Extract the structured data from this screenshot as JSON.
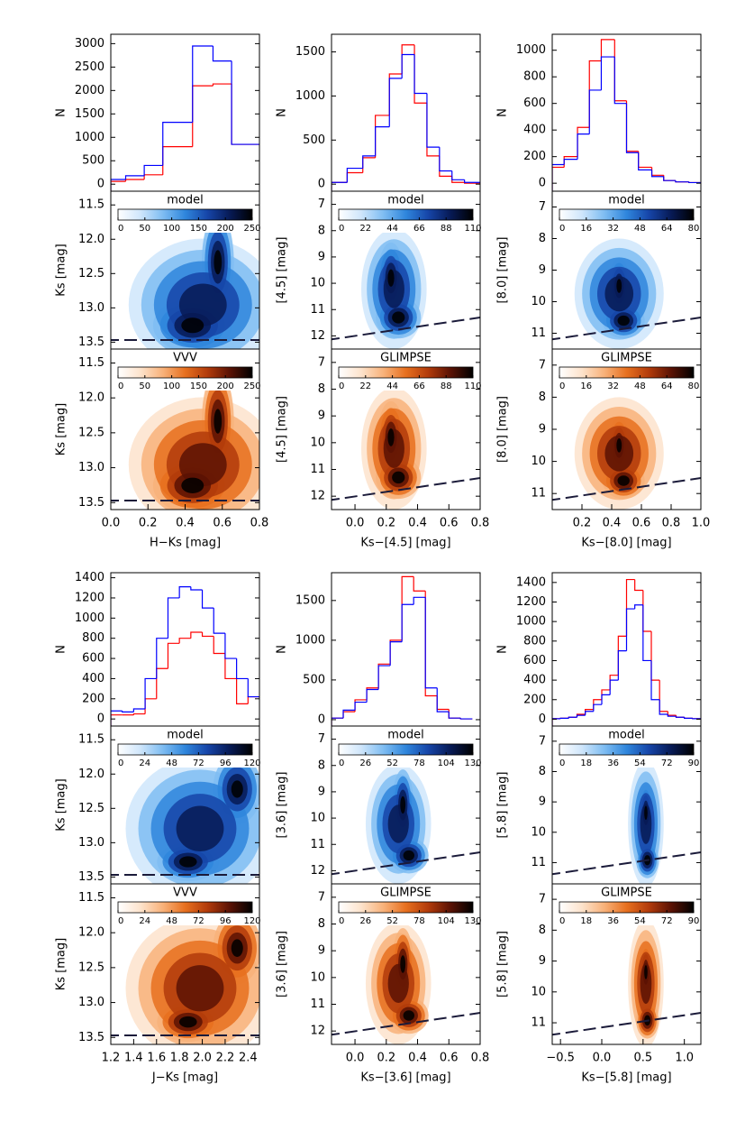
{
  "chart_data": [
    {
      "type": "histogram",
      "ylabel": "N",
      "xlim": [
        0,
        0.8
      ],
      "ylim": [
        -150,
        3200
      ],
      "yticks": [
        0,
        500,
        1000,
        1500,
        2000,
        2500,
        3000
      ],
      "bins": [
        0,
        0.08,
        0.18,
        0.28,
        0.44,
        0.55,
        0.65,
        0.8
      ],
      "series": [
        {
          "color": "#ff0000",
          "values": [
            60,
            100,
            200,
            800,
            2100,
            2140,
            850
          ]
        },
        {
          "color": "#0000ff",
          "values": [
            100,
            180,
            400,
            1320,
            2950,
            2630,
            850
          ]
        }
      ]
    },
    {
      "type": "density",
      "colormap": "blues",
      "ylabel": "Ks [mag]",
      "colorbar_label": "model",
      "clim": [
        0,
        250
      ],
      "cticks": [
        0,
        50,
        100,
        150,
        200,
        250
      ],
      "xlim": [
        0,
        0.8
      ],
      "ylim": [
        13.6,
        11.3
      ],
      "yticks": [
        {
          "value": 11.5,
          "label": "11.5"
        },
        {
          "value": 12,
          "label": "12.0"
        },
        {
          "value": 12.5,
          "label": "12.5"
        },
        {
          "value": 13,
          "label": "13.0"
        },
        {
          "value": 13.5,
          "label": "13.5"
        }
      ]
    },
    {
      "type": "density",
      "colormap": "oranges",
      "ylabel": "Ks [mag]",
      "xlabel": "H−Ks [mag]",
      "colorbar_label": "VVV",
      "clim": [
        0,
        250
      ],
      "cticks": [
        0,
        50,
        100,
        150,
        200,
        250
      ],
      "xlim": [
        0,
        0.8
      ],
      "xticks": [
        {
          "value": 0,
          "label": "0.0"
        },
        {
          "value": 0.2,
          "label": "0.2"
        },
        {
          "value": 0.4,
          "label": "0.4"
        },
        {
          "value": 0.6,
          "label": "0.6"
        },
        {
          "value": 0.8,
          "label": "0.8"
        }
      ],
      "ylim": [
        13.6,
        11.3
      ],
      "yticks": [
        {
          "value": 11.5,
          "label": "11.5"
        },
        {
          "value": 12,
          "label": "12.0"
        },
        {
          "value": 12.5,
          "label": "12.5"
        },
        {
          "value": 13,
          "label": "13.0"
        },
        {
          "value": 13.5,
          "label": "13.5"
        }
      ]
    },
    {
      "type": "histogram",
      "ylabel": "N",
      "xlim": [
        -0.15,
        0.8
      ],
      "ylim": [
        -80,
        1700
      ],
      "yticks": [
        0,
        500,
        1000,
        1500
      ],
      "bins": [
        -0.15,
        -0.05,
        0.05,
        0.13,
        0.22,
        0.3,
        0.38,
        0.46,
        0.54,
        0.62,
        0.7,
        0.8
      ],
      "series": [
        {
          "color": "#ff0000",
          "values": [
            20,
            130,
            300,
            780,
            1250,
            1580,
            920,
            320,
            90,
            20,
            10
          ]
        },
        {
          "color": "#0000ff",
          "values": [
            20,
            180,
            320,
            650,
            1200,
            1470,
            1030,
            420,
            150,
            50,
            20
          ]
        }
      ]
    },
    {
      "type": "density",
      "colormap": "blues",
      "ylabel": "[4.5] [mag]",
      "colorbar_label": "model",
      "clim": [
        0,
        110
      ],
      "cticks": [
        0,
        22,
        44,
        66,
        88,
        110
      ],
      "xlim": [
        -0.15,
        0.8
      ],
      "ylim": [
        12.5,
        6.5
      ],
      "yticks": [
        7,
        8,
        9,
        10,
        11,
        12
      ]
    },
    {
      "type": "density",
      "colormap": "oranges",
      "ylabel": "[4.5] [mag]",
      "xlabel": "Ks−[4.5] [mag]",
      "colorbar_label": "GLIMPSE",
      "clim": [
        0,
        110
      ],
      "cticks": [
        0,
        22,
        44,
        66,
        88,
        110
      ],
      "xlim": [
        -0.15,
        0.8
      ],
      "xticks": [
        {
          "value": 0,
          "label": "0.0"
        },
        {
          "value": 0.2,
          "label": "0.2"
        },
        {
          "value": 0.4,
          "label": "0.4"
        },
        {
          "value": 0.6,
          "label": "0.6"
        },
        {
          "value": 0.8,
          "label": "0.8"
        }
      ],
      "ylim": [
        12.5,
        6.5
      ],
      "yticks": [
        7,
        8,
        9,
        10,
        11,
        12
      ]
    },
    {
      "type": "histogram",
      "ylabel": "N",
      "xlim": [
        0,
        1.0
      ],
      "ylim": [
        -60,
        1120
      ],
      "yticks": [
        0,
        200,
        400,
        600,
        800,
        1000
      ],
      "bins": [
        0,
        0.08,
        0.17,
        0.25,
        0.33,
        0.42,
        0.5,
        0.58,
        0.67,
        0.75,
        0.83,
        0.92,
        1.0
      ],
      "series": [
        {
          "color": "#ff0000",
          "values": [
            120,
            200,
            420,
            920,
            1080,
            620,
            240,
            120,
            60,
            20,
            10,
            5
          ]
        },
        {
          "color": "#0000ff",
          "values": [
            140,
            180,
            370,
            700,
            950,
            600,
            230,
            100,
            50,
            20,
            10,
            5
          ]
        }
      ]
    },
    {
      "type": "density",
      "colormap": "blues",
      "ylabel": "[8.0] [mag]",
      "colorbar_label": "model",
      "clim": [
        0,
        80
      ],
      "cticks": [
        0,
        16,
        32,
        48,
        64,
        80
      ],
      "xlim": [
        0,
        1.0
      ],
      "ylim": [
        11.5,
        6.5
      ],
      "yticks": [
        7,
        8,
        9,
        10,
        11
      ]
    },
    {
      "type": "density",
      "colormap": "oranges",
      "ylabel": "[8.0] [mag]",
      "xlabel": "Ks−[8.0] [mag]",
      "colorbar_label": "GLIMPSE",
      "clim": [
        0,
        80
      ],
      "cticks": [
        0,
        16,
        32,
        48,
        64,
        80
      ],
      "xlim": [
        0,
        1.0
      ],
      "xticks": [
        0.2,
        0.4,
        0.6,
        0.8,
        {
          "value": 1,
          "label": "1.0"
        }
      ],
      "ylim": [
        11.5,
        6.5
      ],
      "yticks": [
        7,
        8,
        9,
        10,
        11
      ]
    },
    {
      "type": "histogram",
      "ylabel": "N",
      "xlim": [
        1.2,
        2.5
      ],
      "ylim": [
        -70,
        1450
      ],
      "yticks": [
        0,
        200,
        400,
        600,
        800,
        1000,
        1200,
        1400
      ],
      "bins": [
        1.2,
        1.3,
        1.4,
        1.5,
        1.6,
        1.7,
        1.8,
        1.9,
        2.0,
        2.1,
        2.2,
        2.3,
        2.4,
        2.5
      ],
      "series": [
        {
          "color": "#ff0000",
          "values": [
            40,
            40,
            50,
            200,
            500,
            750,
            800,
            860,
            820,
            650,
            400,
            150,
            220
          ]
        },
        {
          "color": "#0000ff",
          "values": [
            80,
            70,
            100,
            400,
            800,
            1200,
            1310,
            1280,
            1100,
            850,
            600,
            400,
            220
          ]
        }
      ]
    },
    {
      "type": "density",
      "colormap": "blues",
      "ylabel": "Ks [mag]",
      "colorbar_label": "model",
      "clim": [
        0,
        120
      ],
      "cticks": [
        0,
        24,
        48,
        72,
        96,
        120
      ],
      "xlim": [
        1.2,
        2.5
      ],
      "ylim": [
        13.6,
        11.3
      ],
      "yticks": [
        {
          "value": 11.5,
          "label": "11.5"
        },
        {
          "value": 12,
          "label": "12.0"
        },
        {
          "value": 12.5,
          "label": "12.5"
        },
        {
          "value": 13,
          "label": "13.0"
        },
        {
          "value": 13.5,
          "label": "13.5"
        }
      ]
    },
    {
      "type": "density",
      "colormap": "oranges",
      "ylabel": "Ks [mag]",
      "xlabel": "J−Ks [mag]",
      "colorbar_label": "VVV",
      "clim": [
        0,
        120
      ],
      "cticks": [
        0,
        24,
        48,
        72,
        96,
        120
      ],
      "xlim": [
        1.2,
        2.5
      ],
      "xticks": [
        1.2,
        1.4,
        1.6,
        1.8,
        {
          "value": 2,
          "label": "2.0"
        },
        2.2,
        2.4
      ],
      "ylim": [
        13.6,
        11.3
      ],
      "yticks": [
        {
          "value": 11.5,
          "label": "11.5"
        },
        {
          "value": 12,
          "label": "12.0"
        },
        {
          "value": 12.5,
          "label": "12.5"
        },
        {
          "value": 13,
          "label": "13.0"
        },
        {
          "value": 13.5,
          "label": "13.5"
        }
      ]
    },
    {
      "type": "histogram",
      "ylabel": "N",
      "xlim": [
        -0.15,
        0.8
      ],
      "ylim": [
        -80,
        1850
      ],
      "yticks": [
        0,
        500,
        1000,
        1500
      ],
      "bins": [
        -0.15,
        -0.075,
        0,
        0.075,
        0.15,
        0.225,
        0.3,
        0.375,
        0.45,
        0.525,
        0.6,
        0.675,
        0.75
      ],
      "series": [
        {
          "color": "#ff0000",
          "values": [
            20,
            100,
            250,
            400,
            700,
            1000,
            1800,
            1620,
            300,
            130,
            20,
            10
          ]
        },
        {
          "color": "#0000ff",
          "values": [
            20,
            120,
            220,
            380,
            680,
            980,
            1450,
            1540,
            400,
            100,
            20,
            10
          ]
        }
      ]
    },
    {
      "type": "density",
      "colormap": "blues",
      "ylabel": "[3.6] [mag]",
      "colorbar_label": "model",
      "clim": [
        0,
        130
      ],
      "cticks": [
        0,
        26,
        52,
        78,
        104,
        130
      ],
      "xlim": [
        -0.15,
        0.8
      ],
      "ylim": [
        12.5,
        6.5
      ],
      "yticks": [
        7,
        8,
        9,
        10,
        11,
        12
      ]
    },
    {
      "type": "density",
      "colormap": "oranges",
      "ylabel": "[3.6] [mag]",
      "xlabel": "Ks−[3.6] [mag]",
      "colorbar_label": "GLIMPSE",
      "clim": [
        0,
        130
      ],
      "cticks": [
        0,
        26,
        52,
        78,
        104,
        130
      ],
      "xlim": [
        -0.15,
        0.8
      ],
      "xticks": [
        {
          "value": 0,
          "label": "0.0"
        },
        {
          "value": 0.2,
          "label": "0.2"
        },
        {
          "value": 0.4,
          "label": "0.4"
        },
        {
          "value": 0.6,
          "label": "0.6"
        },
        {
          "value": 0.8,
          "label": "0.8"
        }
      ],
      "ylim": [
        12.5,
        6.5
      ],
      "yticks": [
        7,
        8,
        9,
        10,
        11,
        12
      ]
    },
    {
      "type": "histogram",
      "ylabel": "N",
      "xlim": [
        -0.6,
        1.2
      ],
      "ylim": [
        -70,
        1500
      ],
      "yticks": [
        0,
        200,
        400,
        600,
        800,
        1000,
        1200,
        1400
      ],
      "bins": [
        -0.6,
        -0.5,
        -0.4,
        -0.3,
        -0.2,
        -0.1,
        0,
        0.1,
        0.2,
        0.3,
        0.4,
        0.5,
        0.6,
        0.7,
        0.8,
        0.9,
        1.0,
        1.1,
        1.2
      ],
      "series": [
        {
          "color": "#ff0000",
          "values": [
            5,
            10,
            20,
            50,
            100,
            200,
            300,
            450,
            850,
            1430,
            1320,
            900,
            400,
            80,
            40,
            20,
            10,
            5
          ]
        },
        {
          "color": "#0000ff",
          "values": [
            5,
            10,
            20,
            40,
            80,
            150,
            250,
            400,
            700,
            1130,
            1170,
            600,
            200,
            50,
            30,
            20,
            10,
            5
          ]
        }
      ]
    },
    {
      "type": "density",
      "colormap": "blues",
      "ylabel": "[5.8] [mag]",
      "colorbar_label": "model",
      "clim": [
        0,
        90
      ],
      "cticks": [
        0,
        18,
        36,
        54,
        72,
        90
      ],
      "xlim": [
        -0.6,
        1.2
      ],
      "ylim": [
        11.7,
        6.5
      ],
      "yticks": [
        7,
        8,
        9,
        10,
        11
      ]
    },
    {
      "type": "density",
      "colormap": "oranges",
      "ylabel": "[5.8] [mag]",
      "xlabel": "Ks−[5.8] [mag]",
      "colorbar_label": "GLIMPSE",
      "clim": [
        0,
        90
      ],
      "cticks": [
        0,
        18,
        36,
        54,
        72,
        90
      ],
      "xlim": [
        -0.6,
        1.2
      ],
      "xticks": [
        {
          "value": -0.5,
          "label": "−0.5"
        },
        {
          "value": 0,
          "label": "0.0"
        },
        {
          "value": 0.5,
          "label": "0.5"
        },
        {
          "value": 1,
          "label": "1.0"
        }
      ],
      "ylim": [
        11.7,
        6.5
      ],
      "yticks": [
        7,
        8,
        9,
        10,
        11
      ]
    }
  ]
}
